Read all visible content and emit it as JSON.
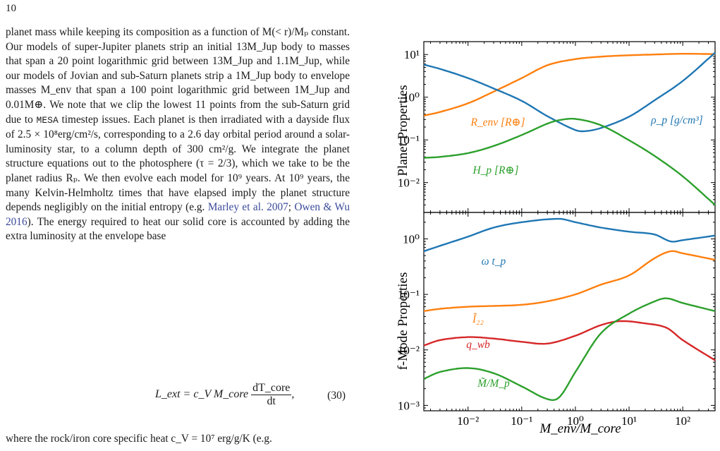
{
  "page": {
    "number": "10"
  },
  "body_text": {
    "before_cite": "planet mass while keeping its composition as a function of M(< r)/Mₚ constant. Our models of super-Jupiter planets strip an initial 13M_Jup body to masses that span a 20 point logarithmic grid between 13M_Jup and 1.1M_Jup, while our models of Jovian and sub-Saturn planets strip a 1M_Jup body to envelope masses M_env that span a 100 point logarithmic grid between 1M_Jup and 0.01M⊕. We note that we clip the lowest 11 points from the sub-Saturn grid due to",
    "mesa": "MESA",
    "after_mesa": "timestep issues. Each planet is then irradiated with a dayside flux of 2.5 × 10⁸erg/cm²/s, corresponding to a 2.6 day orbital period around a solar-luminosity star, to a column depth of 300 cm²/g. We integrate the planet structure equations out to the photosphere (τ = 2/3), which we take to be the planet radius Rₚ. We then evolve each model for 10⁹ years. At 10⁹ years, the many Kelvin-Helmholtz times that have elapsed imply the planet structure depends negligibly on the initial entropy (e.g.",
    "cite1": "Marley et al. 2007",
    "sep": ";",
    "cite2": "Owen & Wu 2016",
    "after_cite": "). The energy required to heat our solid core is accounted by adding the extra luminosity at the envelope base",
    "last_line": "where the rock/iron core specific heat c_V = 10⁷ erg/g/K (e.g."
  },
  "equation": {
    "lhs": "L_ext = c_V M_core",
    "numerator": "dT_core",
    "denominator": "dt",
    "trail": ",",
    "number": "(30)"
  },
  "figure": {
    "xlabel": "M_env/M_core",
    "top_ylabel": "Planet Properties",
    "bottom_ylabel": "f-Mode Properties",
    "colors": {
      "blue": "#1f77b4",
      "orange": "#ff7f0e",
      "green": "#2ca02c",
      "red": "#d62728"
    }
  },
  "chart_data": [
    {
      "type": "line",
      "panel": "top",
      "xscale": "log",
      "yscale": "log",
      "xlim": [
        0.0015,
        400
      ],
      "ylim": [
        0.002,
        20
      ],
      "ylabel": "Planet Properties",
      "yticks": [
        "10⁻²",
        "10⁻¹",
        "10⁰",
        "10¹"
      ],
      "series": [
        {
          "name": "R_env [R⊕]",
          "color": "orange",
          "x": [
            0.0015,
            0.003,
            0.01,
            0.03,
            0.1,
            0.3,
            1,
            3,
            10,
            30,
            100,
            400
          ],
          "y": [
            0.37,
            0.45,
            0.72,
            1.35,
            2.8,
            5.6,
            7.8,
            8.9,
            9.6,
            10.0,
            10.4,
            10.2
          ]
        },
        {
          "name": "ρ_p [g/cm³]",
          "color": "blue",
          "x": [
            0.0015,
            0.003,
            0.01,
            0.03,
            0.1,
            0.3,
            1,
            1.5,
            3,
            10,
            30,
            100,
            400
          ],
          "y": [
            5.8,
            4.6,
            2.8,
            1.6,
            0.82,
            0.36,
            0.17,
            0.16,
            0.19,
            0.35,
            0.85,
            2.4,
            11
          ]
        },
        {
          "name": "H_p [R⊕]",
          "color": "green",
          "x": [
            0.0015,
            0.003,
            0.01,
            0.03,
            0.1,
            0.3,
            0.5,
            1,
            3,
            10,
            30,
            100,
            400
          ],
          "y": [
            0.038,
            0.04,
            0.049,
            0.072,
            0.13,
            0.24,
            0.29,
            0.31,
            0.22,
            0.098,
            0.042,
            0.014,
            0.003
          ]
        }
      ]
    },
    {
      "type": "line",
      "panel": "bottom",
      "xscale": "log",
      "yscale": "log",
      "xlim": [
        0.0015,
        400
      ],
      "ylim": [
        0.0008,
        3
      ],
      "xlabel": "M_env/M_core",
      "ylabel": "f-Mode Properties",
      "xticks": [
        "10⁻²",
        "10⁻¹",
        "10⁰",
        "10¹",
        "10²"
      ],
      "yticks": [
        "10⁻³",
        "10⁻²",
        "10⁻¹",
        "10⁰"
      ],
      "series": [
        {
          "name": "ω t_p",
          "color": "blue",
          "x": [
            0.0015,
            0.003,
            0.01,
            0.03,
            0.1,
            0.5,
            1,
            3,
            10,
            30,
            60,
            100,
            400
          ],
          "y": [
            0.6,
            0.75,
            1.1,
            1.6,
            2.0,
            2.3,
            2.0,
            1.6,
            1.35,
            1.2,
            0.9,
            0.95,
            1.15
          ]
        },
        {
          "name": "Ĩ₂₂",
          "color": "orange",
          "x": [
            0.0015,
            0.003,
            0.01,
            0.03,
            0.1,
            0.3,
            1,
            3,
            10,
            30,
            60,
            100,
            400
          ],
          "y": [
            0.05,
            0.055,
            0.06,
            0.062,
            0.065,
            0.075,
            0.1,
            0.15,
            0.22,
            0.45,
            0.6,
            0.55,
            0.42
          ]
        },
        {
          "name": "q_wb",
          "color": "red",
          "x": [
            0.0015,
            0.003,
            0.01,
            0.03,
            0.1,
            0.3,
            1,
            3,
            7,
            20,
            50,
            100,
            400
          ],
          "y": [
            0.012,
            0.015,
            0.017,
            0.016,
            0.014,
            0.013,
            0.018,
            0.028,
            0.033,
            0.03,
            0.025,
            0.015,
            0.0065
          ]
        },
        {
          "name": "M̃/M_p",
          "color": "green",
          "x": [
            0.0015,
            0.003,
            0.01,
            0.03,
            0.1,
            0.3,
            0.5,
            1,
            3,
            10,
            30,
            50,
            100,
            400
          ],
          "y": [
            0.003,
            0.004,
            0.0047,
            0.0038,
            0.0022,
            0.0013,
            0.0014,
            0.004,
            0.02,
            0.045,
            0.075,
            0.085,
            0.07,
            0.05
          ]
        }
      ]
    }
  ]
}
